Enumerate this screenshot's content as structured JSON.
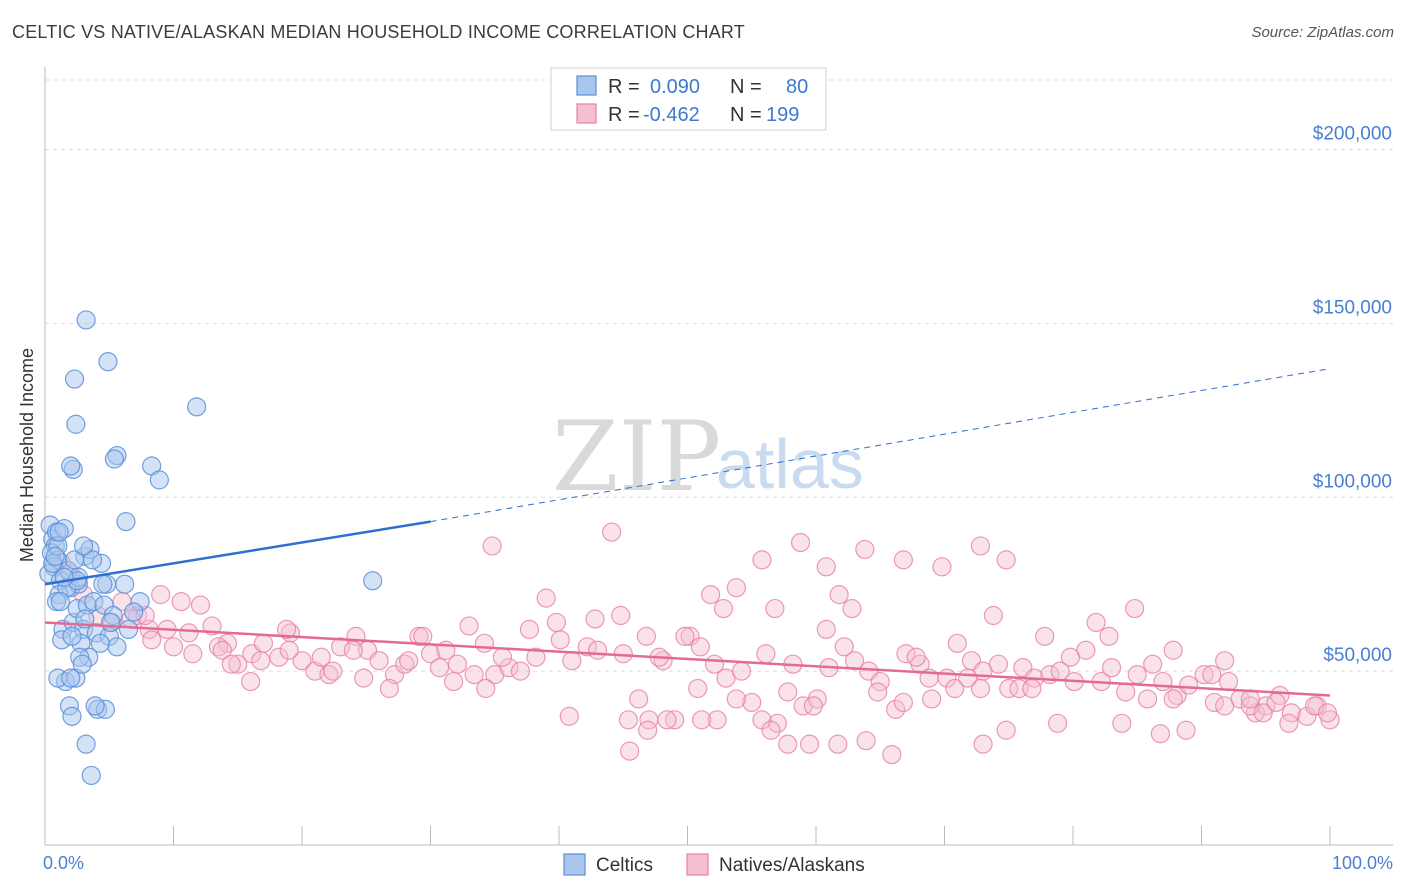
{
  "title": "CELTIC VS NATIVE/ALASKAN MEDIAN HOUSEHOLD INCOME CORRELATION CHART",
  "source": "Source: ZipAtlas.com",
  "watermark": {
    "zip": "ZIP",
    "atlas": "atlas"
  },
  "colors": {
    "celtic_fill": "#a9c6ee",
    "celtic_stroke": "#5a8fd8",
    "celtic_line": "#2e6fd0",
    "native_fill": "#f5bfd2",
    "native_stroke": "#e880a6",
    "native_line": "#e46a96",
    "grid": "#dcdcdc",
    "axis_label": "#4a7fd0"
  },
  "legend": {
    "rows": [
      {
        "r_label": "R =",
        "r_value": "0.090",
        "n_label": "N =",
        "n_value": "80"
      },
      {
        "r_label": "R =",
        "r_value": "-0.462",
        "n_label": "N =",
        "n_value": "199"
      }
    ]
  },
  "chart_data": {
    "type": "scatter",
    "title": "CELTIC VS NATIVE/ALASKAN MEDIAN HOUSEHOLD INCOME CORRELATION CHART",
    "xlabel": "",
    "ylabel": "Median Household Income",
    "xlim": [
      0,
      100
    ],
    "ylim": [
      0,
      220000
    ],
    "x_tick_labels": [
      "0.0%",
      "100.0%"
    ],
    "y_ticks": [
      50000,
      100000,
      150000,
      200000
    ],
    "y_tick_labels": [
      "$50,000",
      "$100,000",
      "$150,000",
      "$200,000"
    ],
    "series": [
      {
        "name": "Celtics",
        "R": 0.09,
        "N": 80,
        "trend": {
          "x0": 0,
          "y0": 75000,
          "x1": 30,
          "y1": 93000,
          "dash_to_x": 100,
          "dash_to_y": 137000
        },
        "points": [
          [
            0.4,
            92000
          ],
          [
            0.6,
            88000
          ],
          [
            0.8,
            86000
          ],
          [
            0.5,
            84000
          ],
          [
            1.0,
            82000
          ],
          [
            0.7,
            80000
          ],
          [
            0.3,
            78000
          ],
          [
            1.2,
            76000
          ],
          [
            0.9,
            90000
          ],
          [
            1.5,
            91000
          ],
          [
            2.0,
            74000
          ],
          [
            2.6,
            75000
          ],
          [
            1.8,
            79000
          ],
          [
            3.1,
            83000
          ],
          [
            3.5,
            85000
          ],
          [
            4.4,
            81000
          ],
          [
            2.3,
            82000
          ],
          [
            1.1,
            72000
          ],
          [
            1.4,
            62000
          ],
          [
            2.2,
            64000
          ],
          [
            2.5,
            68000
          ],
          [
            3.3,
            69000
          ],
          [
            3.8,
            70000
          ],
          [
            4.6,
            69000
          ],
          [
            5.3,
            66000
          ],
          [
            6.2,
            75000
          ],
          [
            4.8,
            75000
          ],
          [
            3.0,
            62000
          ],
          [
            2.8,
            58000
          ],
          [
            4.0,
            61000
          ],
          [
            5.0,
            60000
          ],
          [
            5.6,
            57000
          ],
          [
            6.5,
            62000
          ],
          [
            1.3,
            59000
          ],
          [
            1.6,
            47000
          ],
          [
            2.4,
            48000
          ],
          [
            3.4,
            54000
          ],
          [
            2.7,
            54000
          ],
          [
            2.9,
            52000
          ],
          [
            1.9,
            40000
          ],
          [
            2.1,
            37000
          ],
          [
            3.2,
            29000
          ],
          [
            3.6,
            20000
          ],
          [
            4.1,
            39000
          ],
          [
            4.7,
            39000
          ],
          [
            3.9,
            40000
          ],
          [
            2.2,
            108000
          ],
          [
            2.3,
            134000
          ],
          [
            2.4,
            121000
          ],
          [
            3.2,
            151000
          ],
          [
            4.9,
            139000
          ],
          [
            5.6,
            112000
          ],
          [
            5.4,
            111000
          ],
          [
            8.3,
            109000
          ],
          [
            8.9,
            105000
          ],
          [
            11.8,
            126000
          ],
          [
            2.0,
            109000
          ],
          [
            6.3,
            93000
          ],
          [
            1.0,
            86000
          ],
          [
            0.6,
            81000
          ],
          [
            1.7,
            74000
          ],
          [
            2.6,
            77000
          ],
          [
            3.7,
            82000
          ],
          [
            5.1,
            64000
          ],
          [
            7.4,
            70000
          ],
          [
            6.9,
            67000
          ],
          [
            0.8,
            83000
          ],
          [
            1.1,
            90000
          ],
          [
            3.0,
            86000
          ],
          [
            4.5,
            75000
          ],
          [
            2.5,
            76000
          ],
          [
            1.5,
            77000
          ],
          [
            0.9,
            70000
          ],
          [
            2.1,
            60000
          ],
          [
            3.1,
            65000
          ],
          [
            25.5,
            76000
          ],
          [
            1.0,
            48000
          ],
          [
            2.0,
            48000
          ],
          [
            4.3,
            58000
          ],
          [
            1.2,
            70000
          ]
        ]
      },
      {
        "name": "Natives/Alaskans",
        "R": -0.462,
        "N": 199,
        "trend": {
          "x0": 0,
          "y0": 64000,
          "x1": 100,
          "y1": 43000
        },
        "points": [
          [
            1.3,
            81000
          ],
          [
            2.0,
            78000
          ],
          [
            3.0,
            72000
          ],
          [
            4.1,
            66000
          ],
          [
            5.2,
            64000
          ],
          [
            6.0,
            70000
          ],
          [
            7.2,
            66000
          ],
          [
            8.1,
            62000
          ],
          [
            9.0,
            72000
          ],
          [
            10.0,
            57000
          ],
          [
            11.2,
            61000
          ],
          [
            12.1,
            69000
          ],
          [
            13.0,
            63000
          ],
          [
            14.2,
            58000
          ],
          [
            15.0,
            52000
          ],
          [
            16.1,
            55000
          ],
          [
            17.0,
            58000
          ],
          [
            18.2,
            54000
          ],
          [
            19.1,
            61000
          ],
          [
            20.0,
            53000
          ],
          [
            21.0,
            50000
          ],
          [
            22.1,
            49000
          ],
          [
            23.0,
            57000
          ],
          [
            24.2,
            60000
          ],
          [
            25.1,
            56000
          ],
          [
            26.0,
            53000
          ],
          [
            27.2,
            49000
          ],
          [
            28.0,
            52000
          ],
          [
            29.1,
            60000
          ],
          [
            30.0,
            55000
          ],
          [
            31.2,
            56000
          ],
          [
            32.1,
            52000
          ],
          [
            33.0,
            63000
          ],
          [
            34.2,
            58000
          ],
          [
            35.0,
            49000
          ],
          [
            36.1,
            51000
          ],
          [
            37.0,
            50000
          ],
          [
            38.2,
            54000
          ],
          [
            39.0,
            71000
          ],
          [
            40.1,
            59000
          ],
          [
            41.0,
            53000
          ],
          [
            42.2,
            57000
          ],
          [
            43.0,
            56000
          ],
          [
            44.1,
            90000
          ],
          [
            45.0,
            55000
          ],
          [
            46.2,
            42000
          ],
          [
            47.0,
            36000
          ],
          [
            48.1,
            53000
          ],
          [
            49.0,
            36000
          ],
          [
            50.2,
            60000
          ],
          [
            51.0,
            57000
          ],
          [
            52.1,
            52000
          ],
          [
            53.0,
            48000
          ],
          [
            54.2,
            50000
          ],
          [
            55.0,
            41000
          ],
          [
            56.1,
            55000
          ],
          [
            57.0,
            35000
          ],
          [
            58.2,
            52000
          ],
          [
            59.0,
            40000
          ],
          [
            60.1,
            42000
          ],
          [
            61.0,
            51000
          ],
          [
            62.2,
            57000
          ],
          [
            63.0,
            53000
          ],
          [
            64.1,
            50000
          ],
          [
            65.0,
            47000
          ],
          [
            66.2,
            39000
          ],
          [
            67.0,
            55000
          ],
          [
            68.1,
            52000
          ],
          [
            69.0,
            42000
          ],
          [
            70.2,
            48000
          ],
          [
            71.0,
            58000
          ],
          [
            72.1,
            53000
          ],
          [
            73.0,
            50000
          ],
          [
            74.2,
            52000
          ],
          [
            75.0,
            45000
          ],
          [
            76.1,
            51000
          ],
          [
            77.0,
            48000
          ],
          [
            78.2,
            49000
          ],
          [
            79.0,
            50000
          ],
          [
            80.1,
            47000
          ],
          [
            81.0,
            56000
          ],
          [
            82.2,
            47000
          ],
          [
            83.0,
            51000
          ],
          [
            84.1,
            44000
          ],
          [
            85.0,
            49000
          ],
          [
            86.2,
            52000
          ],
          [
            87.0,
            47000
          ],
          [
            88.1,
            43000
          ],
          [
            89.0,
            46000
          ],
          [
            90.2,
            49000
          ],
          [
            91.0,
            41000
          ],
          [
            92.1,
            47000
          ],
          [
            93.0,
            42000
          ],
          [
            94.2,
            38000
          ],
          [
            95.0,
            40000
          ],
          [
            96.1,
            43000
          ],
          [
            97.0,
            38000
          ],
          [
            98.2,
            37000
          ],
          [
            99.0,
            40000
          ],
          [
            100.0,
            36000
          ],
          [
            7.8,
            66000
          ],
          [
            13.5,
            57000
          ],
          [
            18.8,
            62000
          ],
          [
            21.5,
            54000
          ],
          [
            26.8,
            45000
          ],
          [
            30.7,
            51000
          ],
          [
            35.6,
            54000
          ],
          [
            37.7,
            62000
          ],
          [
            42.8,
            65000
          ],
          [
            46.8,
            60000
          ],
          [
            49.8,
            60000
          ],
          [
            50.8,
            45000
          ],
          [
            52.8,
            68000
          ],
          [
            53.8,
            42000
          ],
          [
            55.8,
            36000
          ],
          [
            57.8,
            44000
          ],
          [
            59.8,
            40000
          ],
          [
            61.8,
            72000
          ],
          [
            62.8,
            68000
          ],
          [
            64.8,
            44000
          ],
          [
            66.8,
            41000
          ],
          [
            68.8,
            48000
          ],
          [
            70.8,
            45000
          ],
          [
            72.8,
            45000
          ],
          [
            74.8,
            33000
          ],
          [
            75.8,
            45000
          ],
          [
            76.8,
            45000
          ],
          [
            78.8,
            35000
          ],
          [
            79.8,
            54000
          ],
          [
            81.8,
            64000
          ],
          [
            82.8,
            60000
          ],
          [
            83.8,
            35000
          ],
          [
            85.8,
            42000
          ],
          [
            86.8,
            32000
          ],
          [
            87.8,
            42000
          ],
          [
            88.8,
            33000
          ],
          [
            90.8,
            49000
          ],
          [
            91.8,
            40000
          ],
          [
            93.8,
            40000
          ],
          [
            94.8,
            38000
          ],
          [
            95.8,
            41000
          ],
          [
            96.8,
            35000
          ],
          [
            98.8,
            40000
          ],
          [
            99.8,
            38000
          ],
          [
            34.8,
            86000
          ],
          [
            39.8,
            64000
          ],
          [
            44.8,
            66000
          ],
          [
            47.8,
            54000
          ],
          [
            51.8,
            72000
          ],
          [
            55.8,
            82000
          ],
          [
            58.8,
            87000
          ],
          [
            60.8,
            80000
          ],
          [
            63.8,
            85000
          ],
          [
            66.8,
            82000
          ],
          [
            69.8,
            80000
          ],
          [
            72.8,
            86000
          ],
          [
            74.8,
            82000
          ],
          [
            53.8,
            74000
          ],
          [
            56.8,
            68000
          ],
          [
            60.8,
            62000
          ],
          [
            67.8,
            54000
          ],
          [
            71.8,
            48000
          ],
          [
            73.8,
            66000
          ],
          [
            77.8,
            60000
          ],
          [
            84.8,
            68000
          ],
          [
            87.8,
            56000
          ],
          [
            91.8,
            53000
          ],
          [
            93.8,
            42000
          ],
          [
            73.0,
            29000
          ],
          [
            65.9,
            26000
          ],
          [
            63.9,
            30000
          ],
          [
            61.7,
            29000
          ],
          [
            57.8,
            29000
          ],
          [
            52.3,
            36000
          ],
          [
            45.4,
            36000
          ],
          [
            51.1,
            36000
          ],
          [
            48.4,
            36000
          ],
          [
            34.3,
            45000
          ],
          [
            40.8,
            37000
          ],
          [
            33.4,
            49000
          ],
          [
            31.8,
            47000
          ],
          [
            29.4,
            60000
          ],
          [
            24.8,
            48000
          ],
          [
            24.0,
            56000
          ],
          [
            28.3,
            53000
          ],
          [
            22.4,
            50000
          ],
          [
            19.0,
            56000
          ],
          [
            16.0,
            47000
          ],
          [
            11.5,
            55000
          ],
          [
            13.8,
            56000
          ],
          [
            9.5,
            62000
          ],
          [
            6.7,
            65000
          ],
          [
            8.3,
            59000
          ],
          [
            10.6,
            70000
          ],
          [
            14.5,
            52000
          ],
          [
            16.8,
            53000
          ],
          [
            45.5,
            27000
          ],
          [
            46.9,
            33000
          ],
          [
            56.5,
            33000
          ],
          [
            59.5,
            29000
          ]
        ]
      }
    ]
  },
  "bottom_legend": {
    "celtics": "Celtics",
    "natives": "Natives/Alaskans"
  }
}
